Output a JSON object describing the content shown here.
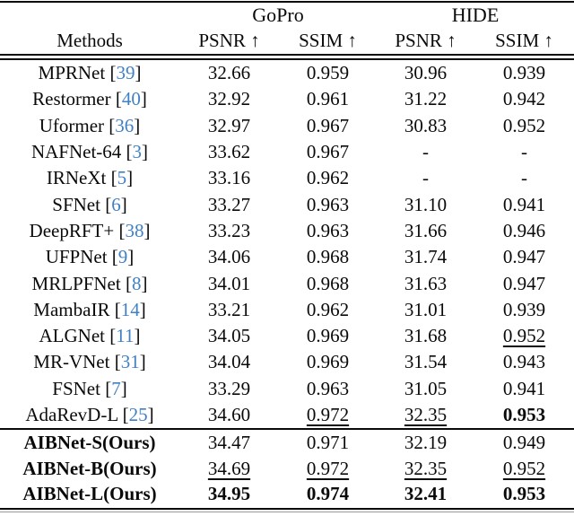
{
  "colors": {
    "citation_blue": "#4080c4",
    "text": "#0a0a0a",
    "background": "#ffffff"
  },
  "table": {
    "dataset_headers": [
      "GoPro",
      "HIDE"
    ],
    "columns": [
      "Methods",
      "PSNR ↑",
      "SSIM ↑",
      "PSNR ↑",
      "SSIM ↑"
    ],
    "baseline_rows": [
      {
        "name": "MPRNet",
        "cite": "39",
        "values": [
          "32.66",
          "0.959",
          "30.96",
          "0.939"
        ],
        "styles": [
          "",
          "",
          "",
          ""
        ]
      },
      {
        "name": "Restormer",
        "cite": "40",
        "values": [
          "32.92",
          "0.961",
          "31.22",
          "0.942"
        ],
        "styles": [
          "",
          "",
          "",
          ""
        ]
      },
      {
        "name": "Uformer",
        "cite": "36",
        "values": [
          "32.97",
          "0.967",
          "30.83",
          "0.952"
        ],
        "styles": [
          "",
          "",
          "",
          ""
        ]
      },
      {
        "name": "NAFNet-64",
        "cite": "3",
        "values": [
          "33.62",
          "0.967",
          "-",
          "-"
        ],
        "styles": [
          "",
          "",
          "",
          ""
        ]
      },
      {
        "name": "IRNeXt",
        "cite": "5",
        "values": [
          "33.16",
          "0.962",
          "-",
          "-"
        ],
        "styles": [
          "",
          "",
          "",
          ""
        ]
      },
      {
        "name": "SFNet",
        "cite": "6",
        "values": [
          "33.27",
          "0.963",
          "31.10",
          "0.941"
        ],
        "styles": [
          "",
          "",
          "",
          ""
        ]
      },
      {
        "name": "DeepRFT+",
        "cite": "38",
        "values": [
          "33.23",
          "0.963",
          "31.66",
          "0.946"
        ],
        "styles": [
          "",
          "",
          "",
          ""
        ]
      },
      {
        "name": "UFPNet",
        "cite": "9",
        "values": [
          "34.06",
          "0.968",
          "31.74",
          "0.947"
        ],
        "styles": [
          "",
          "",
          "",
          ""
        ]
      },
      {
        "name": "MRLPFNet",
        "cite": "8",
        "values": [
          "34.01",
          "0.968",
          "31.63",
          "0.947"
        ],
        "styles": [
          "",
          "",
          "",
          ""
        ]
      },
      {
        "name": "MambaIR",
        "cite": "14",
        "values": [
          "33.21",
          "0.962",
          "31.01",
          "0.939"
        ],
        "styles": [
          "",
          "",
          "",
          ""
        ]
      },
      {
        "name": "ALGNet",
        "cite": "11",
        "values": [
          "34.05",
          "0.969",
          "31.68",
          "0.952"
        ],
        "styles": [
          "",
          "",
          "",
          "underline"
        ]
      },
      {
        "name": "MR-VNet",
        "cite": "31",
        "values": [
          "34.04",
          "0.969",
          "31.54",
          "0.943"
        ],
        "styles": [
          "",
          "",
          "",
          ""
        ]
      },
      {
        "name": "FSNet",
        "cite": "7",
        "values": [
          "33.29",
          "0.963",
          "31.05",
          "0.941"
        ],
        "styles": [
          "",
          "",
          "",
          ""
        ]
      },
      {
        "name": "AdaRevD-L",
        "cite": "25",
        "values": [
          "34.60",
          "0.972",
          "32.35",
          "0.953"
        ],
        "styles": [
          "",
          "underline",
          "underline",
          "bold"
        ]
      }
    ],
    "ours_rows": [
      {
        "name": "AIBNet-S(Ours)",
        "cite": null,
        "bold_name": true,
        "values": [
          "34.47",
          "0.971",
          "32.19",
          "0.949"
        ],
        "styles": [
          "",
          "",
          "",
          ""
        ]
      },
      {
        "name": "AIBNet-B(Ours)",
        "cite": null,
        "bold_name": true,
        "values": [
          "34.69",
          "0.972",
          "32.35",
          "0.952"
        ],
        "styles": [
          "underline",
          "underline",
          "underline",
          "underline"
        ]
      },
      {
        "name": "AIBNet-L(Ours)",
        "cite": null,
        "bold_name": true,
        "values": [
          "34.95",
          "0.974",
          "32.41",
          "0.953"
        ],
        "styles": [
          "bold",
          "bold",
          "bold",
          "bold"
        ]
      }
    ]
  }
}
